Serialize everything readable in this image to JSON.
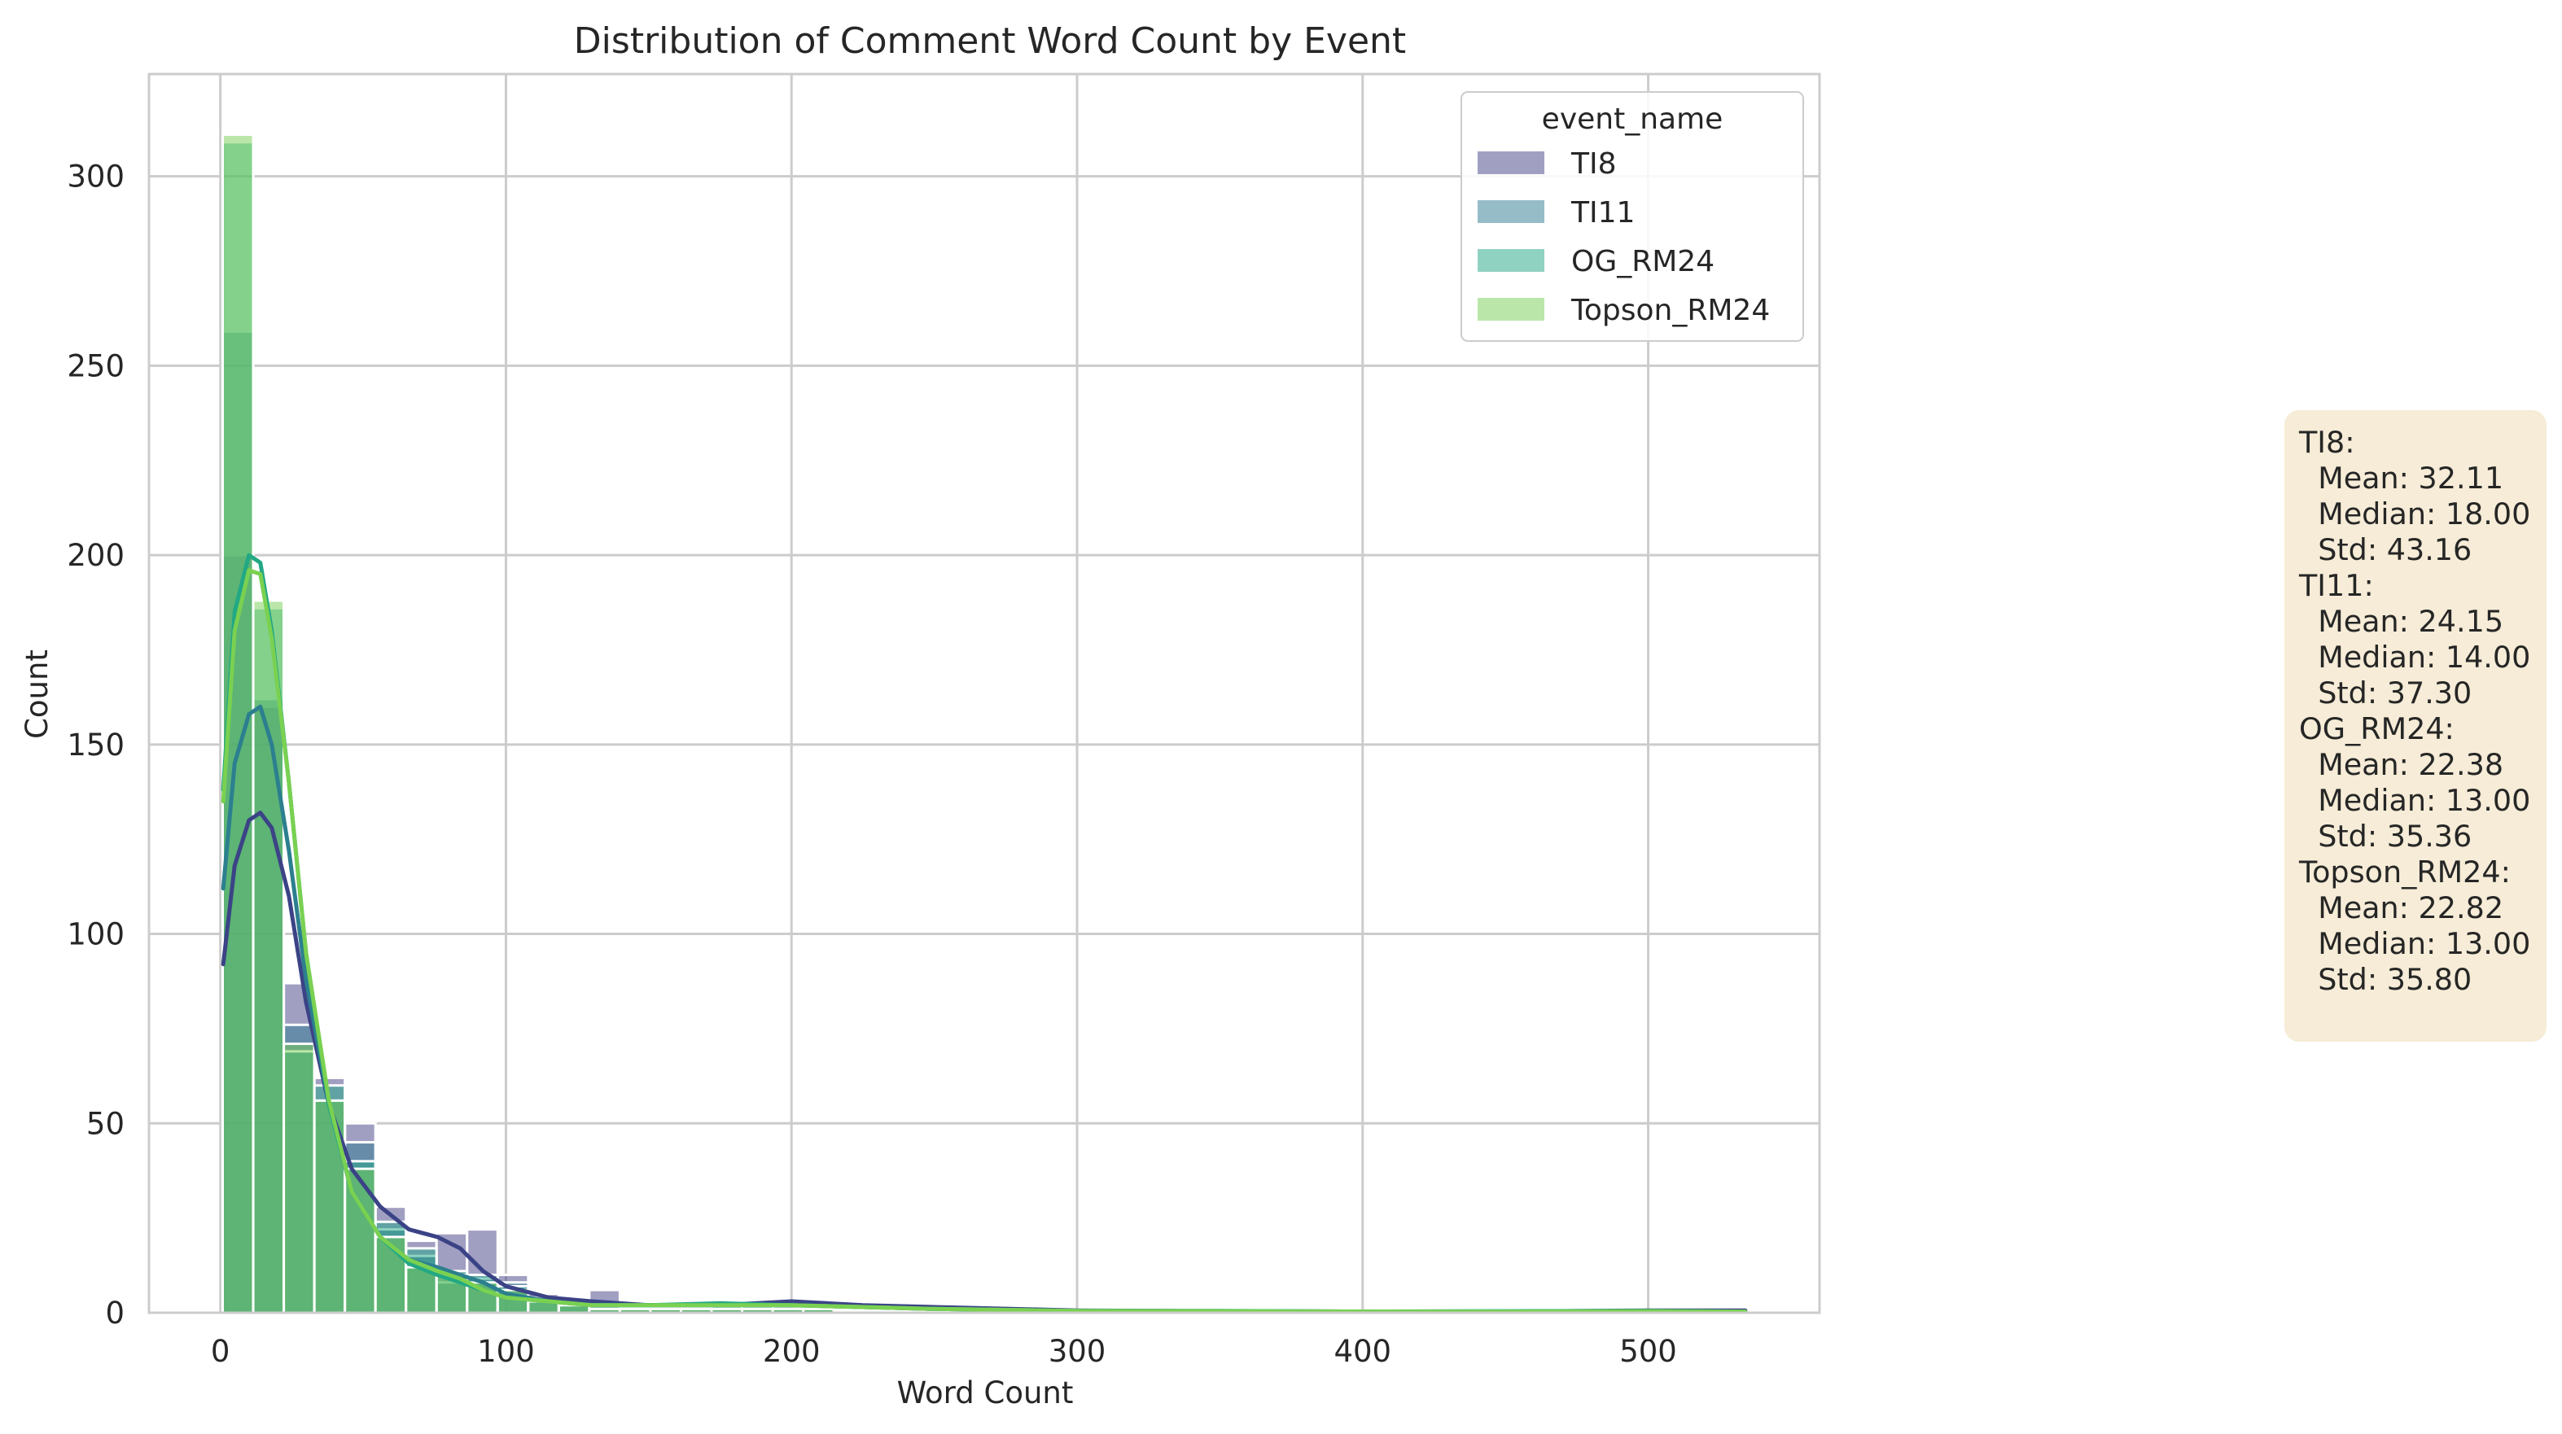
{
  "chart_data": {
    "type": "histogram",
    "title": "Distribution of Comment Word Count by Event",
    "xlabel": "Word Count",
    "ylabel": "Count",
    "xlim": [
      -25,
      560
    ],
    "ylim": [
      0,
      327
    ],
    "xticks": [
      0,
      100,
      200,
      300,
      400,
      500
    ],
    "yticks": [
      0,
      50,
      100,
      150,
      200,
      250,
      300
    ],
    "bin_width": 10.7,
    "bin_start": 0.8,
    "legend_title": "event_name",
    "legend_position": "upper-right",
    "series": [
      {
        "name": "TI8",
        "color": "#413f86",
        "values": [
          200,
          160,
          87,
          62,
          50,
          28,
          19,
          21,
          22,
          10,
          5,
          2,
          6,
          1,
          1,
          1,
          1,
          1,
          2,
          1
        ]
      },
      {
        "name": "TI11",
        "color": "#2e7a90",
        "values": [
          259,
          162,
          76,
          56,
          45,
          22,
          15,
          8,
          9,
          8,
          4,
          3,
          2,
          1,
          1,
          1,
          1,
          2,
          1,
          1
        ]
      },
      {
        "name": "OG_RM24",
        "color": "#21a685",
        "values": [
          309,
          186,
          69,
          60,
          40,
          24,
          17,
          11,
          10,
          7,
          3,
          2,
          1,
          1,
          1,
          1,
          2,
          1,
          1,
          1
        ]
      },
      {
        "name": "Topson_RM24",
        "color": "#75d054",
        "values": [
          311,
          188,
          71,
          56,
          38,
          20,
          12,
          10,
          8,
          6,
          3,
          2,
          1,
          1,
          1,
          1,
          1,
          1,
          1,
          1
        ]
      }
    ],
    "kde": [
      {
        "name": "TI8",
        "color": "#3b4386",
        "x": [
          1,
          5,
          10,
          14,
          18,
          24,
          30,
          38,
          46,
          56,
          66,
          76,
          84,
          92,
          100,
          115,
          130,
          150,
          175,
          200,
          225,
          250,
          300,
          350,
          400,
          450,
          500,
          534
        ],
        "y": [
          92,
          118,
          130,
          132,
          128,
          110,
          82,
          55,
          38,
          28,
          22,
          20,
          17,
          11,
          7,
          4,
          3,
          2,
          2,
          3,
          2,
          1.5,
          0.6,
          0.4,
          0.3,
          0.3,
          0.6,
          0.6
        ]
      },
      {
        "name": "TI11",
        "color": "#2c7f8e",
        "x": [
          1,
          5,
          10,
          14,
          18,
          24,
          30,
          38,
          46,
          56,
          66,
          76,
          84,
          92,
          100,
          115,
          130,
          150,
          175,
          200,
          225,
          250,
          300,
          350,
          400,
          450,
          500,
          534
        ],
        "y": [
          112,
          145,
          158,
          160,
          150,
          122,
          88,
          55,
          32,
          20,
          14,
          12,
          10,
          8,
          5,
          3,
          2,
          2,
          2,
          2,
          1.5,
          1,
          0.5,
          0.4,
          0.3,
          0.3,
          0.4,
          0.3
        ]
      },
      {
        "name": "OG_RM24",
        "color": "#22a884",
        "x": [
          1,
          5,
          10,
          14,
          18,
          24,
          30,
          38,
          46,
          56,
          66,
          76,
          84,
          92,
          100,
          115,
          130,
          150,
          175,
          200,
          225,
          250,
          300,
          350,
          400,
          450,
          500,
          534
        ],
        "y": [
          138,
          185,
          200,
          198,
          180,
          140,
          95,
          55,
          32,
          20,
          13,
          10,
          8,
          6,
          4,
          3,
          2,
          2,
          2.5,
          2,
          1.5,
          1,
          0.5,
          0.5,
          0.3,
          0.4,
          0.5,
          0.3
        ]
      },
      {
        "name": "Topson_RM24",
        "color": "#7ad151",
        "x": [
          1,
          5,
          10,
          14,
          18,
          24,
          30,
          38,
          46,
          56,
          66,
          76,
          84,
          92,
          100,
          115,
          130,
          150,
          175,
          200,
          225,
          250,
          300,
          350,
          400,
          450,
          500,
          534
        ],
        "y": [
          135,
          180,
          196,
          195,
          178,
          140,
          95,
          56,
          32,
          20,
          14,
          11,
          9,
          6,
          4,
          3,
          2,
          2,
          2,
          2,
          1.5,
          1,
          0.5,
          0.4,
          0.3,
          0.3,
          0.4,
          0.3
        ]
      }
    ]
  },
  "stats_box": {
    "lines": [
      "TI8:",
      "  Mean: 32.11",
      "  Median: 18.00",
      "  Std: 43.16",
      "TI11:",
      "  Mean: 24.15",
      "  Median: 14.00",
      "  Std: 37.30",
      "OG_RM24:",
      "  Mean: 22.38",
      "  Median: 13.00",
      "  Std: 35.36",
      "Topson_RM24:",
      "  Mean: 22.82",
      "  Median: 13.00",
      "  Std: 35.80"
    ]
  }
}
